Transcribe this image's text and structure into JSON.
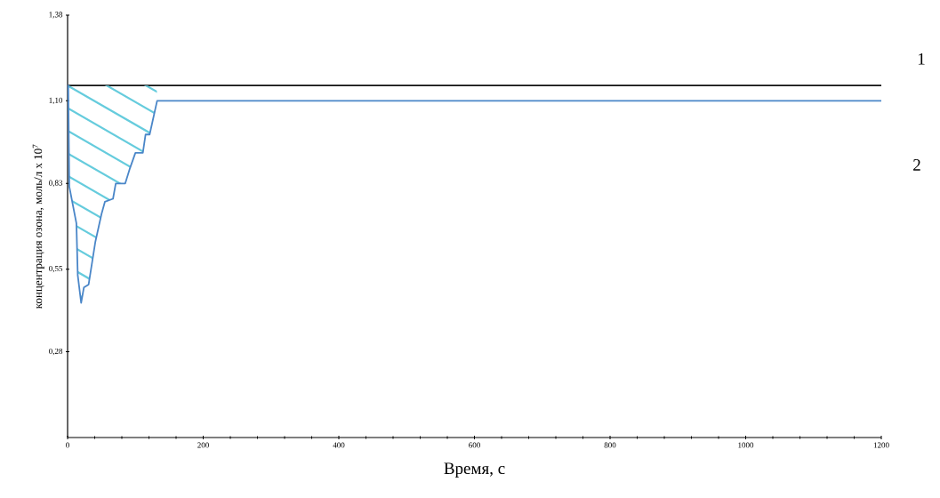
{
  "chart_data": {
    "type": "line",
    "xlabel": "Время, с",
    "ylabel": "концентрация озона, моль/л  x 10$^{7}$",
    "xlim": [
      0,
      1200
    ],
    "xticks": [
      0,
      200,
      400,
      600,
      800,
      1000,
      1200
    ],
    "ylim": [
      0,
      1.38
    ],
    "yticks": [
      {
        "value": 0.28,
        "label": "0,28"
      },
      {
        "value": 0.55,
        "label": "0,55"
      },
      {
        "value": 0.83,
        "label": "0,83"
      },
      {
        "value": 1.1,
        "label": "1,10"
      },
      {
        "value": 1.38,
        "label": "1,38"
      }
    ],
    "grid": false,
    "legend": false,
    "marker": "none",
    "line_style": "solid",
    "series": [
      {
        "name": "1",
        "color": "#111111",
        "x": [
          0,
          1200
        ],
        "values": [
          1.15,
          1.15
        ]
      },
      {
        "name": "2",
        "color": "#4a86c8",
        "x": [
          0,
          1,
          2.5,
          13,
          15,
          20,
          24,
          31,
          41,
          50,
          55,
          67,
          71,
          85,
          92,
          100,
          111,
          115,
          121,
          125,
          132,
          1200
        ],
        "values": [
          1.15,
          1.15,
          0.82,
          0.7,
          0.53,
          0.44,
          0.49,
          0.5,
          0.64,
          0.73,
          0.77,
          0.78,
          0.83,
          0.83,
          0.88,
          0.93,
          0.93,
          0.99,
          0.99,
          1.03,
          1.1,
          1.1
        ]
      }
    ]
  }
}
